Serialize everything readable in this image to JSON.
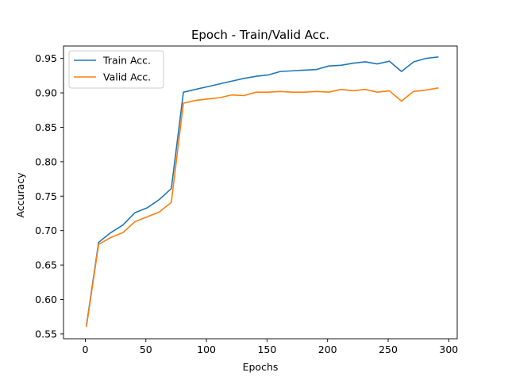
{
  "chart_data": {
    "type": "line",
    "title": "Epoch - Train/Valid Acc.",
    "xlabel": "Epochs",
    "ylabel": "Accuracy",
    "xlim": [
      -18,
      307
    ],
    "ylim": [
      0.543,
      0.968
    ],
    "x_ticks": [
      0,
      50,
      100,
      150,
      200,
      250,
      300
    ],
    "y_ticks": [
      0.55,
      0.6,
      0.65,
      0.7,
      0.75,
      0.8,
      0.85,
      0.9,
      0.95
    ],
    "y_tick_labels": [
      "0.55",
      "0.60",
      "0.65",
      "0.70",
      "0.75",
      "0.80",
      "0.85",
      "0.90",
      "0.95"
    ],
    "grid": false,
    "legend_position": "top-left",
    "x": [
      1,
      11,
      21,
      31,
      41,
      51,
      61,
      71,
      81,
      91,
      101,
      111,
      121,
      131,
      141,
      151,
      161,
      171,
      181,
      191,
      201,
      211,
      221,
      231,
      241,
      251,
      261,
      271,
      281,
      291
    ],
    "series": [
      {
        "name": "Train Acc.",
        "color": "#1f77b4",
        "values": [
          0.563,
          0.683,
          0.697,
          0.708,
          0.726,
          0.733,
          0.745,
          0.761,
          0.901,
          0.905,
          0.909,
          0.913,
          0.917,
          0.921,
          0.924,
          0.926,
          0.931,
          0.932,
          0.933,
          0.934,
          0.939,
          0.94,
          0.943,
          0.945,
          0.942,
          0.946,
          0.931,
          0.945,
          0.95,
          0.952
        ]
      },
      {
        "name": "Valid Acc.",
        "color": "#ff7f0e",
        "values": [
          0.561,
          0.68,
          0.69,
          0.697,
          0.713,
          0.72,
          0.727,
          0.741,
          0.885,
          0.889,
          0.891,
          0.893,
          0.897,
          0.896,
          0.901,
          0.901,
          0.902,
          0.901,
          0.901,
          0.902,
          0.901,
          0.905,
          0.903,
          0.905,
          0.901,
          0.903,
          0.888,
          0.902,
          0.904,
          0.907
        ]
      }
    ]
  }
}
